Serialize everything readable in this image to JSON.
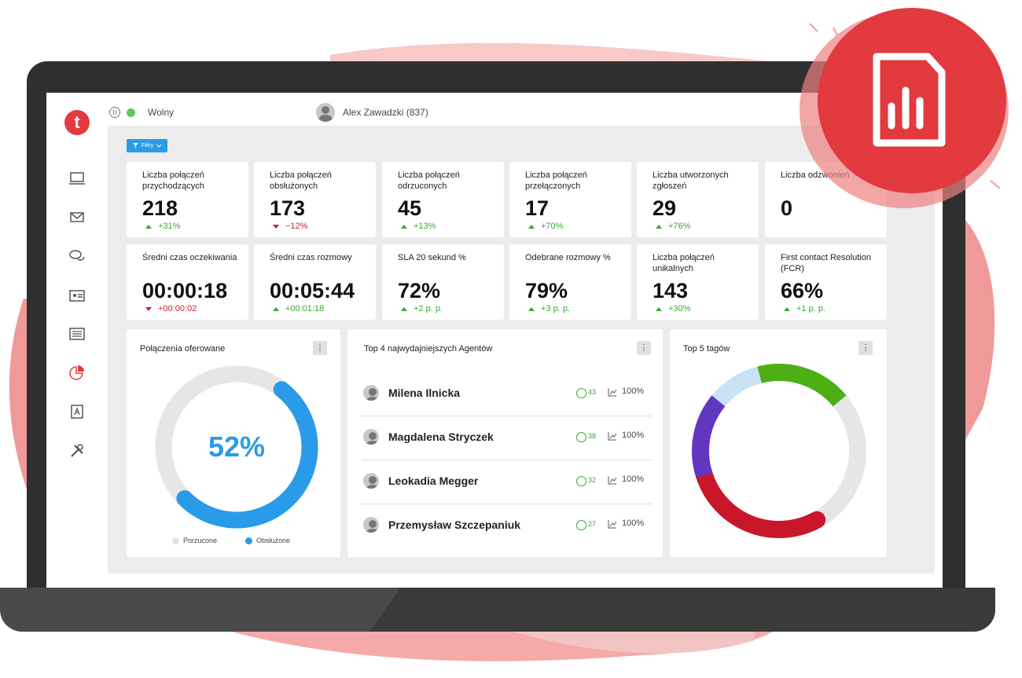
{
  "header": {
    "status_label": "Wolny",
    "user_name": "Alex Zawadzki (837)"
  },
  "filter": {
    "label": "Filtry"
  },
  "kpis": [
    {
      "title": "Liczba połączeń przychodzących",
      "value": "218",
      "delta": "+31%",
      "trend": "up"
    },
    {
      "title": "Liczba połączeń obsłużonych",
      "value": "173",
      "delta": "−12%",
      "trend": "down"
    },
    {
      "title": "Liczba połączeń odrzuconych",
      "value": "45",
      "delta": "+13%",
      "trend": "up"
    },
    {
      "title": "Liczba połączeń przełączonych",
      "value": "17",
      "delta": "+70%",
      "trend": "up"
    },
    {
      "title": "Liczba utworzonych zgłoszeń",
      "value": "29",
      "delta": "+76%",
      "trend": "up"
    },
    {
      "title": "Liczba odzwonień",
      "value": "0",
      "delta": "",
      "trend": ""
    },
    {
      "title": "Średni czas oczekiwania",
      "value": "00:00:18",
      "delta": "+00:00:02",
      "trend": "down"
    },
    {
      "title": "Średni czas rozmowy",
      "value": "00:05:44",
      "delta": "+00:01:18",
      "trend": "up"
    },
    {
      "title": "SLA 20 sekund %",
      "value": "72%",
      "delta": "+2 p. p.",
      "trend": "up"
    },
    {
      "title": "Odebrane rozmowy %",
      "value": "79%",
      "delta": "+3 p. p.",
      "trend": "up"
    },
    {
      "title": "Liczba połączeń unikalnych",
      "value": "143",
      "delta": "+30%",
      "trend": "up"
    },
    {
      "title": "First contact Resolution (FCR)",
      "value": "66%",
      "delta": "+1 p. p.",
      "trend": "up"
    }
  ],
  "calls_widget": {
    "title": "Połączenia oferowane",
    "center_value": "52%",
    "handled_fraction": 0.52,
    "legend": [
      "Porzucone",
      "Obsłużone"
    ],
    "colors": {
      "abandoned": "#e6e6e6",
      "handled": "#2a9be8"
    }
  },
  "agents_widget": {
    "title": "Top 4 najwydajniejszych Agentów",
    "agents": [
      {
        "name": "Milena Ilnicka",
        "score": "43",
        "pct": "100%"
      },
      {
        "name": "Magdalena Stryczek",
        "score": "38",
        "pct": "100%"
      },
      {
        "name": "Leokadia Megger",
        "score": "32",
        "pct": "100%"
      },
      {
        "name": "Przemysław Szczepaniuk",
        "score": "27",
        "pct": "100%"
      }
    ]
  },
  "tags_widget": {
    "title": "Top  5 tagów",
    "segments": [
      {
        "fraction": 0.18,
        "color": "#4caf14"
      },
      {
        "fraction": 0.28,
        "color": "#e6e6e6"
      },
      {
        "fraction": 0.28,
        "color": "#c8172a"
      },
      {
        "fraction": 0.16,
        "color": "#6237c0"
      },
      {
        "fraction": 0.1,
        "color": "#c9e3f4"
      }
    ]
  },
  "icons": [
    "pause-icon",
    "status-dot-icon",
    "logo-icon",
    "laptop-icon",
    "mail-icon",
    "chat-icon",
    "contact-card-icon",
    "list-icon",
    "reports-icon",
    "address-book-icon",
    "tools-icon",
    "report-file-icon"
  ],
  "colors": {
    "brand": "#e23a3e",
    "accent": "#2a9be8",
    "positive": "#3aa832",
    "negative": "#c0262d"
  }
}
